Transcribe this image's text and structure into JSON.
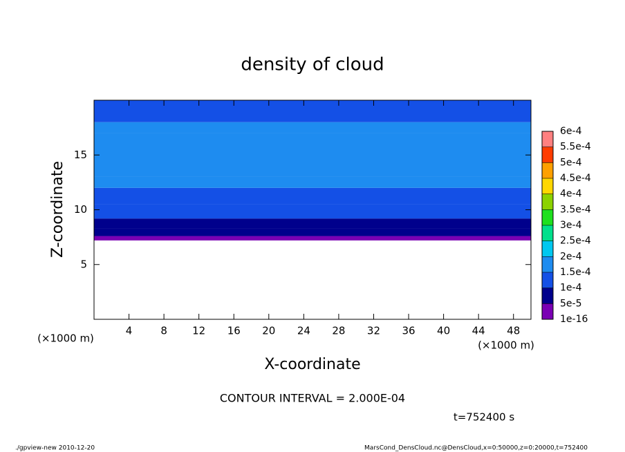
{
  "chart_data": {
    "type": "contour",
    "title": "density of cloud",
    "x_label": "X-coordinate",
    "y_label": "Z-coordinate",
    "x_unit": "(×1000 m)",
    "y_unit": "(×1000 m)",
    "xlim": [
      0,
      50
    ],
    "ylim": [
      0,
      20
    ],
    "xticks": [
      4,
      8,
      12,
      16,
      20,
      24,
      28,
      32,
      36,
      40,
      44,
      48
    ],
    "yticks": [
      5,
      10,
      15
    ],
    "z_bins": [
      7.2,
      7.6,
      8.3,
      9.2,
      10.5,
      12,
      13,
      17,
      18,
      20
    ],
    "values": [
      3e-05,
      6e-05,
      8e-05,
      0.00011,
      0.00013,
      0.000155,
      0.00017,
      0.000155,
      0.00013
    ],
    "levels": [
      {
        "value": 1e-16,
        "label": "1e-16"
      },
      {
        "value": 5e-05,
        "label": "5e-5"
      },
      {
        "value": 0.0001,
        "label": "1e-4"
      },
      {
        "value": 0.00015,
        "label": "1.5e-4"
      },
      {
        "value": 0.0002,
        "label": "2e-4"
      },
      {
        "value": 0.00025,
        "label": "2.5e-4"
      },
      {
        "value": 0.0003,
        "label": "3e-4"
      },
      {
        "value": 0.00035,
        "label": "3.5e-4"
      },
      {
        "value": 0.0004,
        "label": "4e-4"
      },
      {
        "value": 0.00045,
        "label": "4.5e-4"
      },
      {
        "value": 0.0005,
        "label": "5e-4"
      },
      {
        "value": 0.00055,
        "label": "5.5e-4"
      },
      {
        "value": 0.0006,
        "label": "6e-4"
      }
    ],
    "level_colors": [
      "#7a00b4",
      "#00008c",
      "#1450e6",
      "#1e8cf0",
      "#00c8f0",
      "#00e08c",
      "#1ee01e",
      "#8cd200",
      "#ffd700",
      "#ffa000",
      "#ff3c00",
      "#ff8080"
    ],
    "contour_interval": "CONTOUR INTERVAL = 2.000E-04",
    "time_label": "t=752400 s",
    "footer_left": "./gpview-new   2010-12-20",
    "footer_right": "MarsCond_DensCloud.nc@DensCloud,x=0:50000,z=0:20000,t=752400"
  }
}
